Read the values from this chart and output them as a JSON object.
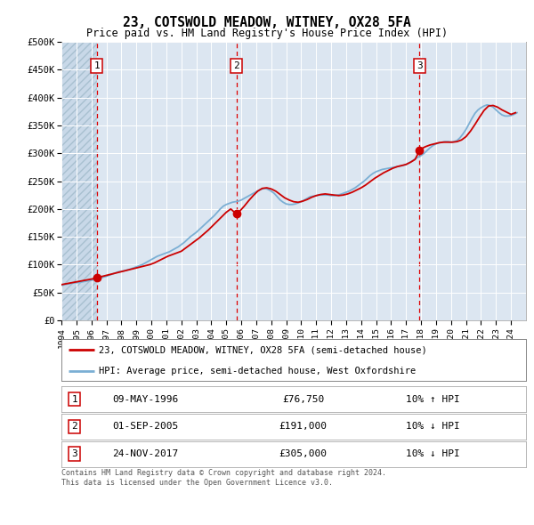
{
  "title": "23, COTSWOLD MEADOW, WITNEY, OX28 5FA",
  "subtitle": "Price paid vs. HM Land Registry's House Price Index (HPI)",
  "yticks": [
    0,
    50000,
    100000,
    150000,
    200000,
    250000,
    300000,
    350000,
    400000,
    450000,
    500000
  ],
  "ytick_labels": [
    "£0",
    "£50K",
    "£100K",
    "£150K",
    "£200K",
    "£250K",
    "£300K",
    "£350K",
    "£400K",
    "£450K",
    "£500K"
  ],
  "xmin": 1994,
  "xmax": 2025,
  "ymin": 0,
  "ymax": 500000,
  "sale_dates": [
    1996.36,
    2005.67,
    2017.9
  ],
  "sale_prices": [
    76750,
    191000,
    305000
  ],
  "sale_labels": [
    "1",
    "2",
    "3"
  ],
  "sale_date_strs": [
    "09-MAY-1996",
    "01-SEP-2005",
    "24-NOV-2017"
  ],
  "sale_price_strs": [
    "£76,750",
    "£191,000",
    "£305,000"
  ],
  "sale_hpi_strs": [
    "10% ↑ HPI",
    "10% ↓ HPI",
    "10% ↓ HPI"
  ],
  "hpi_color": "#7bafd4",
  "price_color": "#cc0000",
  "dashed_color": "#dd0000",
  "background_color": "#dce6f1",
  "legend_line1": "23, COTSWOLD MEADOW, WITNEY, OX28 5FA (semi-detached house)",
  "legend_line2": "HPI: Average price, semi-detached house, West Oxfordshire",
  "footer": "Contains HM Land Registry data © Crown copyright and database right 2024.\nThis data is licensed under the Open Government Licence v3.0.",
  "hpi_data_x": [
    1994.0,
    1994.2,
    1994.4,
    1994.6,
    1994.8,
    1995.0,
    1995.2,
    1995.4,
    1995.6,
    1995.8,
    1996.0,
    1996.2,
    1996.4,
    1996.6,
    1996.8,
    1997.0,
    1997.2,
    1997.4,
    1997.6,
    1997.8,
    1998.0,
    1998.2,
    1998.4,
    1998.6,
    1998.8,
    1999.0,
    1999.2,
    1999.4,
    1999.6,
    1999.8,
    2000.0,
    2000.2,
    2000.4,
    2000.6,
    2000.8,
    2001.0,
    2001.2,
    2001.4,
    2001.6,
    2001.8,
    2002.0,
    2002.2,
    2002.4,
    2002.6,
    2002.8,
    2003.0,
    2003.2,
    2003.4,
    2003.6,
    2003.8,
    2004.0,
    2004.2,
    2004.4,
    2004.6,
    2004.8,
    2005.0,
    2005.2,
    2005.4,
    2005.6,
    2005.8,
    2006.0,
    2006.2,
    2006.4,
    2006.6,
    2006.8,
    2007.0,
    2007.2,
    2007.4,
    2007.6,
    2007.8,
    2008.0,
    2008.2,
    2008.4,
    2008.6,
    2008.8,
    2009.0,
    2009.2,
    2009.4,
    2009.6,
    2009.8,
    2010.0,
    2010.2,
    2010.4,
    2010.6,
    2010.8,
    2011.0,
    2011.2,
    2011.4,
    2011.6,
    2011.8,
    2012.0,
    2012.2,
    2012.4,
    2012.6,
    2012.8,
    2013.0,
    2013.2,
    2013.4,
    2013.6,
    2013.8,
    2014.0,
    2014.2,
    2014.4,
    2014.6,
    2014.8,
    2015.0,
    2015.2,
    2015.4,
    2015.6,
    2015.8,
    2016.0,
    2016.2,
    2016.4,
    2016.6,
    2016.8,
    2017.0,
    2017.2,
    2017.4,
    2017.6,
    2017.8,
    2018.0,
    2018.2,
    2018.4,
    2018.6,
    2018.8,
    2019.0,
    2019.2,
    2019.4,
    2019.6,
    2019.8,
    2020.0,
    2020.2,
    2020.4,
    2020.6,
    2020.8,
    2021.0,
    2021.2,
    2021.4,
    2021.6,
    2021.8,
    2022.0,
    2022.2,
    2022.4,
    2022.6,
    2022.8,
    2023.0,
    2023.2,
    2023.4,
    2023.6,
    2023.8,
    2024.0,
    2024.2,
    2024.4
  ],
  "hpi_data_y": [
    63000,
    64000,
    65000,
    66000,
    67000,
    67500,
    68000,
    69000,
    70000,
    71000,
    72000,
    73000,
    74500,
    76000,
    77500,
    79000,
    81000,
    83000,
    85000,
    87000,
    88000,
    89000,
    90500,
    92000,
    94000,
    96000,
    98000,
    100000,
    103000,
    106000,
    109000,
    112000,
    115000,
    117000,
    119000,
    121000,
    123000,
    126000,
    129000,
    132000,
    136000,
    140000,
    145000,
    150000,
    154000,
    158000,
    163000,
    168000,
    173000,
    178000,
    183000,
    188000,
    194000,
    200000,
    205000,
    208000,
    210000,
    212000,
    213000,
    214000,
    216000,
    219000,
    222000,
    225000,
    228000,
    231000,
    234000,
    236000,
    237000,
    235000,
    232000,
    228000,
    222000,
    216000,
    212000,
    209000,
    208000,
    208000,
    209000,
    211000,
    213000,
    216000,
    219000,
    222000,
    223000,
    224000,
    225000,
    225000,
    225000,
    225000,
    224000,
    224000,
    225000,
    226000,
    228000,
    230000,
    232000,
    235000,
    238000,
    242000,
    246000,
    250000,
    255000,
    260000,
    264000,
    267000,
    269000,
    271000,
    272000,
    273000,
    274000,
    275000,
    276000,
    277000,
    278000,
    280000,
    283000,
    286000,
    290000,
    293000,
    296000,
    300000,
    305000,
    310000,
    314000,
    317000,
    319000,
    320000,
    321000,
    321000,
    320000,
    321000,
    323000,
    328000,
    335000,
    343000,
    353000,
    363000,
    372000,
    378000,
    382000,
    385000,
    387000,
    386000,
    383000,
    378000,
    373000,
    369000,
    367000,
    367000,
    368000,
    370000,
    373000
  ],
  "price_data_x": [
    1994.0,
    1994.3,
    1994.6,
    1994.9,
    1995.2,
    1995.5,
    1995.8,
    1996.1,
    1996.36,
    1996.6,
    1996.9,
    1997.2,
    1997.5,
    1997.8,
    1998.1,
    1998.4,
    1998.7,
    1999.0,
    1999.3,
    1999.6,
    1999.9,
    2000.2,
    2000.5,
    2000.8,
    2001.1,
    2001.4,
    2001.7,
    2002.0,
    2002.3,
    2002.6,
    2002.9,
    2003.2,
    2003.5,
    2003.8,
    2004.1,
    2004.4,
    2004.7,
    2005.0,
    2005.3,
    2005.67,
    2005.9,
    2006.2,
    2006.5,
    2006.8,
    2007.1,
    2007.4,
    2007.7,
    2008.0,
    2008.3,
    2008.6,
    2008.9,
    2009.2,
    2009.5,
    2009.8,
    2010.1,
    2010.4,
    2010.7,
    2011.0,
    2011.3,
    2011.6,
    2011.9,
    2012.2,
    2012.5,
    2012.8,
    2013.1,
    2013.4,
    2013.7,
    2014.0,
    2014.3,
    2014.6,
    2014.9,
    2015.2,
    2015.5,
    2015.8,
    2016.1,
    2016.4,
    2016.7,
    2017.0,
    2017.3,
    2017.6,
    2017.9,
    2018.0,
    2018.3,
    2018.6,
    2018.9,
    2019.2,
    2019.5,
    2019.8,
    2020.1,
    2020.4,
    2020.7,
    2021.0,
    2021.3,
    2021.6,
    2021.9,
    2022.2,
    2022.5,
    2022.8,
    2023.1,
    2023.4,
    2023.7,
    2024.0,
    2024.3
  ],
  "price_data_y": [
    64000,
    65500,
    67000,
    68500,
    70000,
    71500,
    73000,
    74500,
    76750,
    78000,
    80000,
    82000,
    84000,
    86000,
    88000,
    90000,
    92000,
    94000,
    96000,
    98000,
    100000,
    103000,
    107000,
    111000,
    115000,
    118000,
    121000,
    124000,
    130000,
    136000,
    142000,
    148000,
    155000,
    162000,
    170000,
    178000,
    186000,
    194000,
    200000,
    191000,
    196000,
    205000,
    215000,
    224000,
    232000,
    237000,
    238000,
    236000,
    232000,
    226000,
    220000,
    216000,
    213000,
    212000,
    214000,
    217000,
    221000,
    224000,
    226000,
    227000,
    226000,
    225000,
    224000,
    225000,
    227000,
    230000,
    234000,
    238000,
    243000,
    249000,
    255000,
    260000,
    265000,
    269000,
    273000,
    276000,
    278000,
    280000,
    284000,
    289000,
    305000,
    308000,
    312000,
    315000,
    317000,
    319000,
    320000,
    320000,
    320000,
    321000,
    324000,
    330000,
    340000,
    352000,
    365000,
    377000,
    385000,
    386000,
    383000,
    378000,
    374000,
    370000,
    373000
  ]
}
